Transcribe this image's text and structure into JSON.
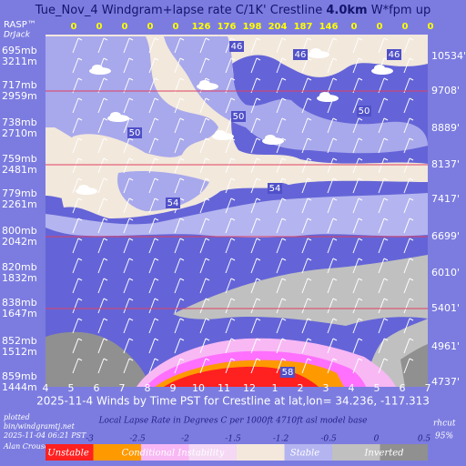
{
  "chart_data": {
    "type": "windgram",
    "title_parts": [
      "Tue_Nov_4 Windgram+lapse rate C/1K'  Crestline ",
      "4.0km",
      "  W*fpm up"
    ],
    "brand": [
      "RASP™",
      "DrJack"
    ],
    "hours": [
      "4",
      "5",
      "6",
      "7",
      "8",
      "9",
      "10",
      "11",
      "12",
      "1",
      "2",
      "3",
      "4",
      "5",
      "6",
      "7"
    ],
    "wstar": [
      0,
      0,
      0,
      0,
      0,
      126,
      176,
      198,
      204,
      187,
      146,
      0,
      0,
      0,
      0
    ],
    "levels": [
      {
        "mb": "695mb",
        "m": "3211m",
        "ft": "10534'"
      },
      {
        "mb": "717mb",
        "m": "2959m",
        "ft": "9708'"
      },
      {
        "mb": "738mb",
        "m": "2710m",
        "ft": "8889'"
      },
      {
        "mb": "759mb",
        "m": "2481m",
        "ft": "8137'"
      },
      {
        "mb": "779mb",
        "m": "2261m",
        "ft": "7417'"
      },
      {
        "mb": "800mb",
        "m": "2042m",
        "ft": "6699'"
      },
      {
        "mb": "820mb",
        "m": "1832m",
        "ft": "6010'"
      },
      {
        "mb": "838mb",
        "m": "1647m",
        "ft": "5401'"
      },
      {
        "mb": "852mb",
        "m": "1512m",
        "ft": "4961'"
      },
      {
        "mb": "859mb",
        "m": "1444m",
        "ft": "4737'"
      }
    ],
    "contour_labels": [
      46,
      46,
      46,
      50,
      50,
      50,
      54,
      54,
      58
    ],
    "xlabel": "2025-11-4 Winds by Time PST for Crestline at lat,lon= 34.236, -117.313",
    "credit": [
      "plotted",
      "bin/windgramtj.net",
      "2025-11-04 06:21 PST",
      "Alan Crouse"
    ],
    "rh": [
      "rhcut",
      "95%"
    ],
    "legend": {
      "title": "Local Lapse Rate in Degrees C per 1000ft  4710ft asl model base",
      "ticks": [
        -3,
        -2.5,
        -2,
        -1.5,
        -1.2,
        -0.5,
        0,
        0.5
      ],
      "colors": [
        "#ff2020",
        "#ff9900",
        "#f8b8f4",
        "#f4d8f4",
        "#f4e8dc",
        "#b4b4f0",
        "#c0c0c0",
        "#909090"
      ],
      "names": [
        "Unstable",
        "Conditional Instability",
        "Stable",
        "Inverted"
      ]
    }
  }
}
